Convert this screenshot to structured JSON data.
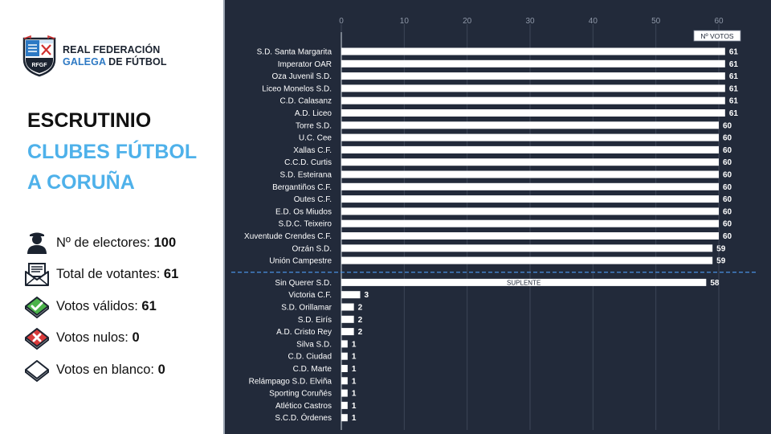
{
  "brand": {
    "line1": "REAL FEDERACIÓN",
    "line2_blue": "GALEGA",
    "line2_rest": " DE FÚTBOL",
    "logo_text": "RFGF"
  },
  "title": {
    "line1": "ESCRUTINIO",
    "line2": "CLUBES FÚTBOL",
    "line3": "A CORUÑA"
  },
  "stats": [
    {
      "label": "Nº de electores: ",
      "value": "100",
      "icon": "person-icon"
    },
    {
      "label": "Total de votantes: ",
      "value": "61",
      "icon": "ballot-envelope-icon"
    },
    {
      "label": "Votos válidos: ",
      "value": "61",
      "icon": "valid-check-icon"
    },
    {
      "label": "Votos nulos: ",
      "value": "0",
      "icon": "null-x-icon"
    },
    {
      "label": "Votos en blanco: ",
      "value": "0",
      "icon": "blank-envelope-icon"
    }
  ],
  "colors": {
    "panel_bg": "#222a3a",
    "bar": "#ffffff",
    "accent": "#4eb1ea",
    "separator": "#4a90e2",
    "grid": "#3d4658"
  },
  "chart_data": {
    "type": "bar",
    "orientation": "horizontal",
    "xlim": [
      0,
      60
    ],
    "x_ticks": [
      "0",
      "10",
      "20",
      "30",
      "40",
      "50",
      "60"
    ],
    "legend": "Nº VOTOS",
    "categories": [
      "S.D. Santa Margarita",
      "Imperator OAR",
      "Oza Juvenil S.D.",
      "Liceo Monelos S.D.",
      "C.D. Calasanz",
      "A.D. Liceo",
      "Torre S.D.",
      "U.C. Cee",
      "Xallas C.F.",
      "C.C.D. Curtis",
      "S.D. Esteirana",
      "Bergantiños C.F.",
      "Outes C.F.",
      "E.D. Os Miudos",
      "S.D.C. Teixeiro",
      "Xuventude Crendes C.F.",
      "Orzán S.D.",
      "Unión Campestre",
      "Sin Querer S.D.",
      "Victoria C.F.",
      "S.D. Orillamar",
      "S.D. Eirís",
      "A.D. Cristo Rey",
      "Silva S.D.",
      "C.D. Ciudad",
      "C.D. Marte",
      "Relámpago S.D. Elviña",
      "Sporting Coruñés",
      "Atlético Castros",
      "S.C.D. Órdenes"
    ],
    "values": [
      61,
      61,
      61,
      61,
      61,
      61,
      60,
      60,
      60,
      60,
      60,
      60,
      60,
      60,
      60,
      60,
      59,
      59,
      58,
      3,
      2,
      2,
      2,
      1,
      1,
      1,
      1,
      1,
      1,
      1
    ],
    "value_labels": [
      "61",
      "61",
      "61",
      "61",
      "61",
      "61",
      "60",
      "60",
      "60",
      "60",
      "60",
      "60",
      "60",
      "60",
      "60",
      "60",
      "59",
      "59",
      "58",
      "3",
      "2",
      "2",
      "2",
      "1",
      "1",
      "1",
      "1",
      "1",
      "1",
      "1"
    ],
    "elected_count": 18,
    "annotations": [
      {
        "category": "Sin Querer S.D.",
        "text": "SUPLENTE"
      }
    ]
  }
}
